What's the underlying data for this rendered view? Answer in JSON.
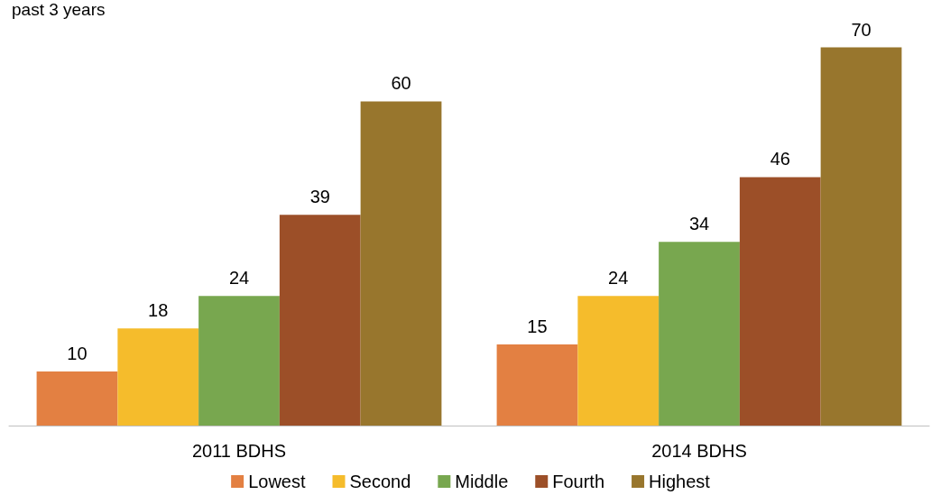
{
  "chart_data": {
    "type": "bar",
    "title": "past 3 years",
    "categories": [
      "2011 BDHS",
      "2014 BDHS"
    ],
    "series": [
      {
        "name": "Lowest",
        "color": "#e38042",
        "values": [
          10,
          15
        ]
      },
      {
        "name": "Second",
        "color": "#f5bc2c",
        "values": [
          18,
          24
        ]
      },
      {
        "name": "Middle",
        "color": "#78a74f",
        "values": [
          24,
          34
        ]
      },
      {
        "name": "Fourth",
        "color": "#9c4f28",
        "values": [
          39,
          46
        ]
      },
      {
        "name": "Highest",
        "color": "#98762d",
        "values": [
          60,
          70
        ]
      }
    ],
    "data_labels": true,
    "legend": "bottom"
  }
}
